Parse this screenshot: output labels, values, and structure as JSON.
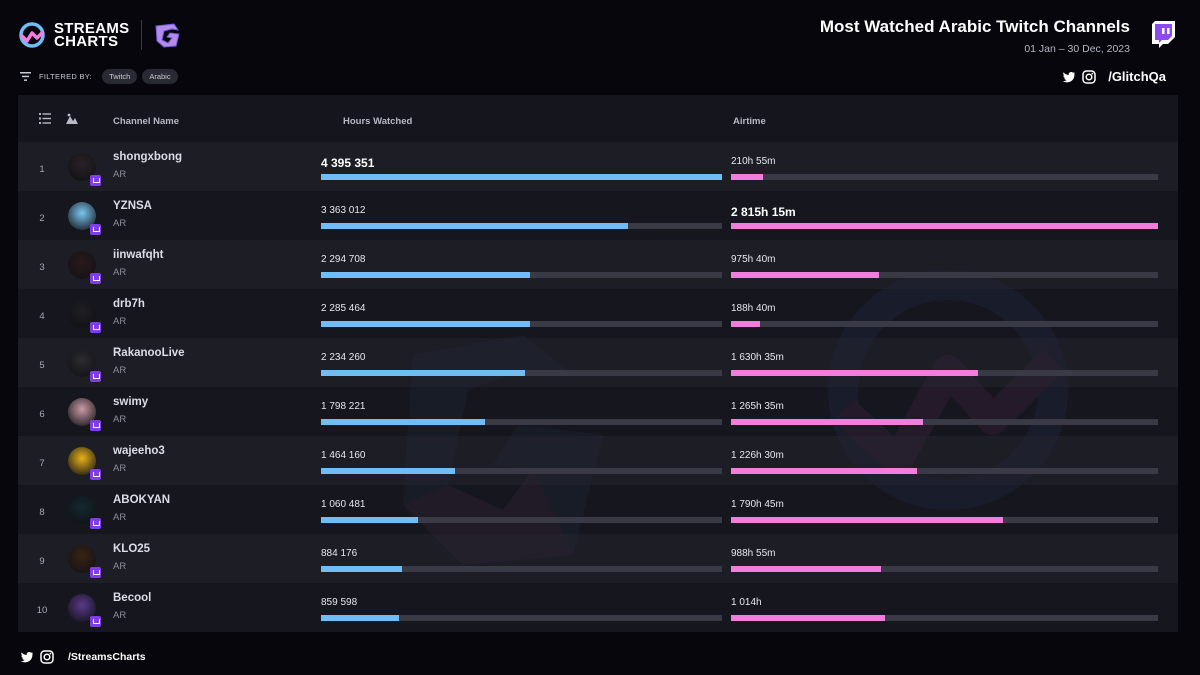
{
  "brand": {
    "line1": "STREAMS",
    "line2": "CHARTS",
    "accent": "#6fbdf4",
    "accent2": "#f27ddd"
  },
  "header": {
    "title": "Most Watched Arabic Twitch Channels",
    "date_range": "01 Jan – 30 Dec, 2023"
  },
  "filters": {
    "label": "FILTERED BY:",
    "chips": [
      "Twitch",
      "Arabic"
    ]
  },
  "social_top": {
    "handle": "/GlitchQa"
  },
  "social_bottom": {
    "handle": "/StreamsCharts"
  },
  "table": {
    "columns": {
      "channel": "Channel Name",
      "hours": "Hours Watched",
      "airtime": "Airtime"
    },
    "rows": [
      {
        "rank": "1",
        "name": "shongxbong",
        "lang": "AR",
        "hours": "4 395 351",
        "hours_num": 4395351,
        "airtime": "210h 55m",
        "airtime_min": 12655
      },
      {
        "rank": "2",
        "name": "YZNSA",
        "lang": "AR",
        "hours": "3 363 012",
        "hours_num": 3363012,
        "airtime": "2 815h 15m",
        "airtime_min": 168915
      },
      {
        "rank": "3",
        "name": "iinwafqht",
        "lang": "AR",
        "hours": "2 294 708",
        "hours_num": 2294708,
        "airtime": "975h 40m",
        "airtime_min": 58540
      },
      {
        "rank": "4",
        "name": "drb7h",
        "lang": "AR",
        "hours": "2 285 464",
        "hours_num": 2285464,
        "airtime": "188h 40m",
        "airtime_min": 11320
      },
      {
        "rank": "5",
        "name": "RakanooLive",
        "lang": "AR",
        "hours": "2 234 260",
        "hours_num": 2234260,
        "airtime": "1 630h 35m",
        "airtime_min": 97835
      },
      {
        "rank": "6",
        "name": "swimy",
        "lang": "AR",
        "hours": "1 798 221",
        "hours_num": 1798221,
        "airtime": "1 265h 35m",
        "airtime_min": 75935
      },
      {
        "rank": "7",
        "name": "wajeeho3",
        "lang": "AR",
        "hours": "1 464 160",
        "hours_num": 1464160,
        "airtime": "1 226h 30m",
        "airtime_min": 73590
      },
      {
        "rank": "8",
        "name": "ABOKYAN",
        "lang": "AR",
        "hours": "1 060 481",
        "hours_num": 1060481,
        "airtime": "1 790h 45m",
        "airtime_min": 107445
      },
      {
        "rank": "9",
        "name": "KLO25",
        "lang": "AR",
        "hours": "884 176",
        "hours_num": 884176,
        "airtime": "988h 55m",
        "airtime_min": 59335
      },
      {
        "rank": "10",
        "name": "Becool",
        "lang": "AR",
        "hours": "859 598",
        "hours_num": 859598,
        "airtime": "1 014h",
        "airtime_min": 60840
      }
    ]
  }
}
